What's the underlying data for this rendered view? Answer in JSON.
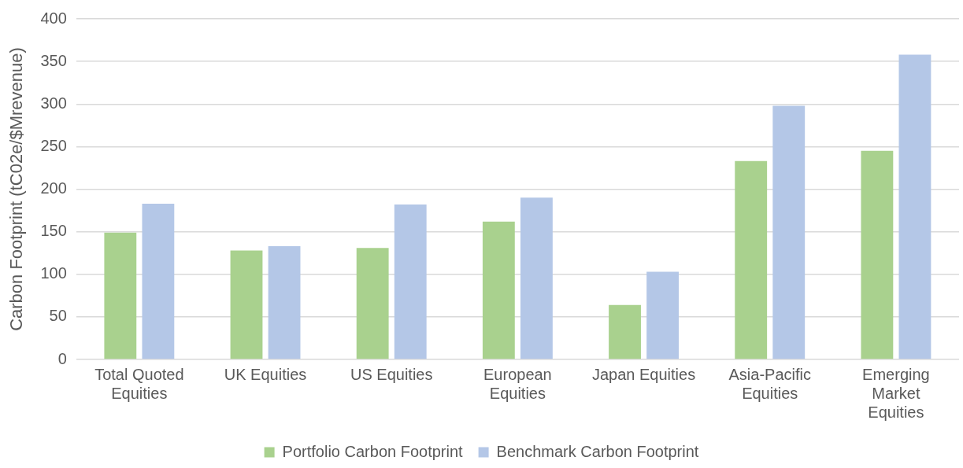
{
  "chart_data": {
    "type": "bar",
    "ylabel": "Carbon Footprint (tC02e/$Mrevenue)",
    "categories": [
      "Total Quoted Equities",
      "UK Equities",
      "US Equities",
      "European Equities",
      "Japan Equities",
      "Asia-Pacific Equities",
      "Emerging Market Equities"
    ],
    "series": [
      {
        "name": "Portfolio Carbon Footprint",
        "color": "#a9d18e",
        "values": [
          149,
          128,
          131,
          162,
          64,
          233,
          245
        ]
      },
      {
        "name": "Benchmark Carbon Footprint",
        "color": "#b4c7e7",
        "values": [
          183,
          133,
          182,
          190,
          103,
          298,
          358
        ]
      }
    ],
    "ylim": [
      0,
      400
    ],
    "yticks": [
      0,
      50,
      100,
      150,
      200,
      250,
      300,
      350,
      400
    ],
    "grid": "y",
    "legend": "bottom"
  }
}
